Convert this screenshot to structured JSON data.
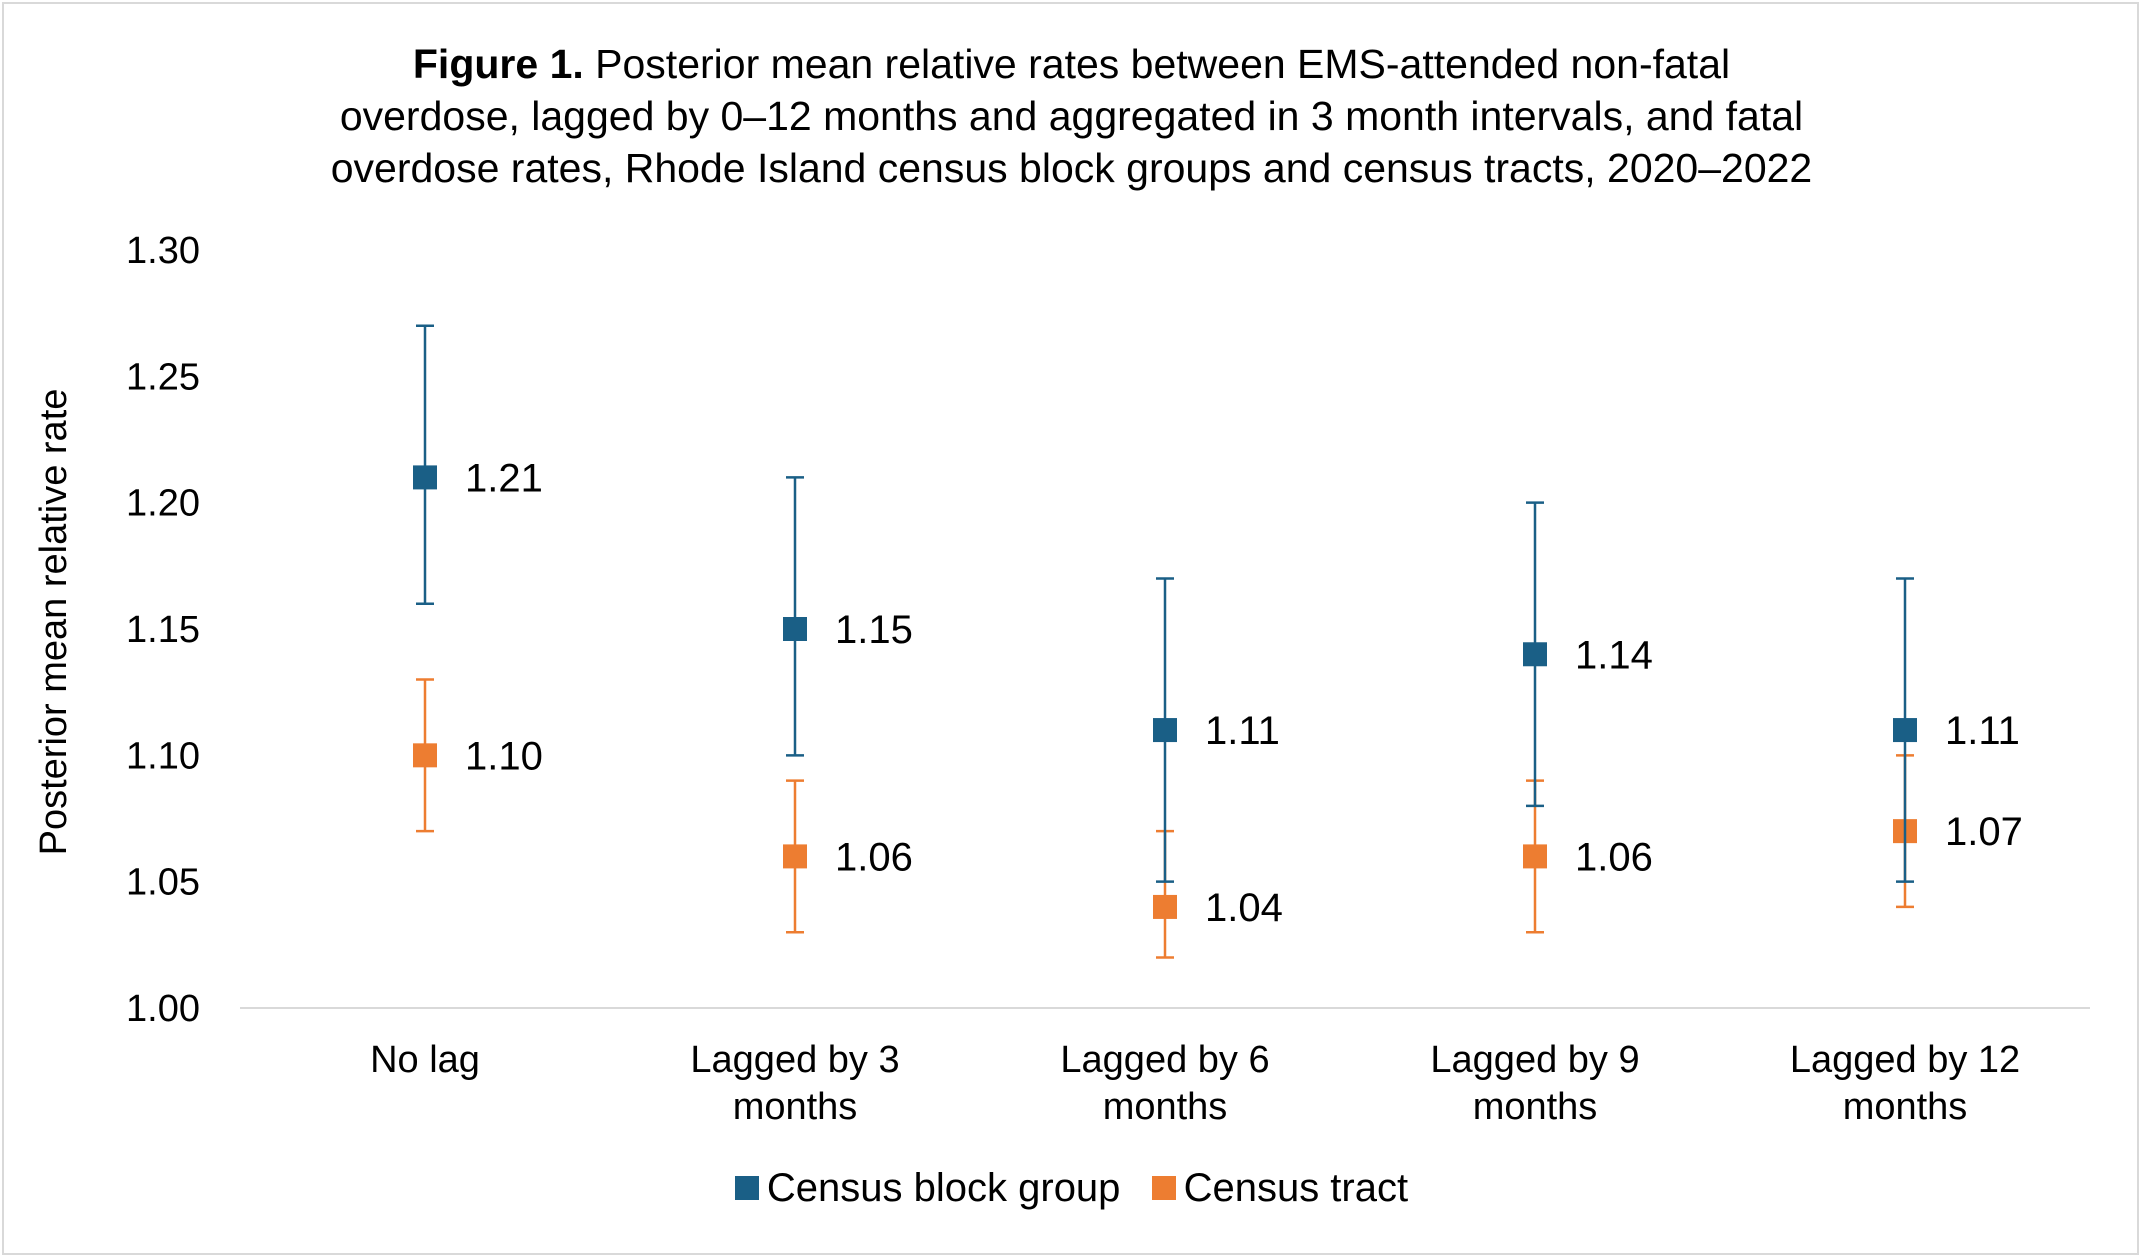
{
  "chart_data": {
    "type": "scatter",
    "title_prefix": "Figure 1.",
    "title_lines": [
      " Posterior mean relative rates between EMS-attended non-fatal",
      "overdose, lagged by 0–12 months and aggregated in 3 month intervals, and fatal",
      "overdose rates, Rhode Island census block groups and census tracts, 2020–2022"
    ],
    "ylabel": "Posterior mean relative rate",
    "xlabel": "",
    "ylim": [
      1.0,
      1.3
    ],
    "yticks": [
      "1.00",
      "1.05",
      "1.10",
      "1.15",
      "1.20",
      "1.25",
      "1.30"
    ],
    "categories": [
      [
        "No lag"
      ],
      [
        "Lagged by 3",
        "months"
      ],
      [
        "Lagged by 6",
        "months"
      ],
      [
        "Lagged by 9",
        "months"
      ],
      [
        "Lagged by 12",
        "months"
      ]
    ],
    "grid": false,
    "legend_position": "bottom",
    "series": [
      {
        "name": "Census block group",
        "color": "#1a5f86",
        "values": [
          1.21,
          1.15,
          1.11,
          1.14,
          1.11
        ],
        "lower": [
          1.16,
          1.1,
          1.05,
          1.08,
          1.05
        ],
        "upper": [
          1.27,
          1.21,
          1.17,
          1.2,
          1.17
        ],
        "labels": [
          "1.21",
          "1.15",
          "1.11",
          "1.14",
          "1.11"
        ]
      },
      {
        "name": "Census tract",
        "color": "#ed7d31",
        "values": [
          1.1,
          1.06,
          1.04,
          1.06,
          1.07
        ],
        "lower": [
          1.07,
          1.03,
          1.02,
          1.03,
          1.04
        ],
        "upper": [
          1.13,
          1.09,
          1.07,
          1.09,
          1.1
        ],
        "labels": [
          "1.10",
          "1.06",
          "1.04",
          "1.06",
          "1.07"
        ]
      }
    ]
  }
}
